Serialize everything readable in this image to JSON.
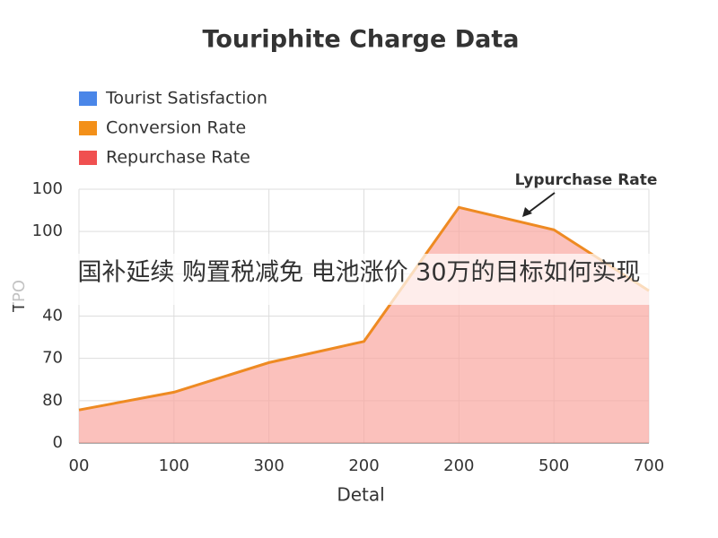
{
  "chart_data": {
    "type": "area",
    "title": "Touriphite Charge Data",
    "legend": [
      {
        "name": "Tourist Satisfaction",
        "color": "#4a86e8"
      },
      {
        "name": "Conversion Rate",
        "color": "#f39019"
      },
      {
        "name": "Repurchase Rate",
        "color": "#f05050"
      }
    ],
    "categories": [
      "00",
      "100",
      "300",
      "200",
      "200",
      "500",
      "700"
    ],
    "series": [
      {
        "color": "#ee8a22",
        "fill": "#f9a79f",
        "values": [
          0.78,
          1.2,
          1.9,
          2.4,
          5.57,
          5.04,
          3.6
        ]
      }
    ],
    "ylim": [
      0,
      6
    ],
    "yticks": [
      {
        "value": 0,
        "label": "0"
      },
      {
        "value": 1,
        "label": "80"
      },
      {
        "value": 2,
        "label": "70"
      },
      {
        "value": 3,
        "label": "40"
      },
      {
        "value": 4,
        "label": ""
      },
      {
        "value": 5,
        "label": "100"
      },
      {
        "value": 6,
        "label": "100"
      }
    ],
    "ylabel": "TPO",
    "xlabel": "Detal",
    "annotation": "Lypurchase Rate",
    "grid": true,
    "banner": "国补延续 购置税减免 电池涨价 30万的目标如何实现"
  }
}
